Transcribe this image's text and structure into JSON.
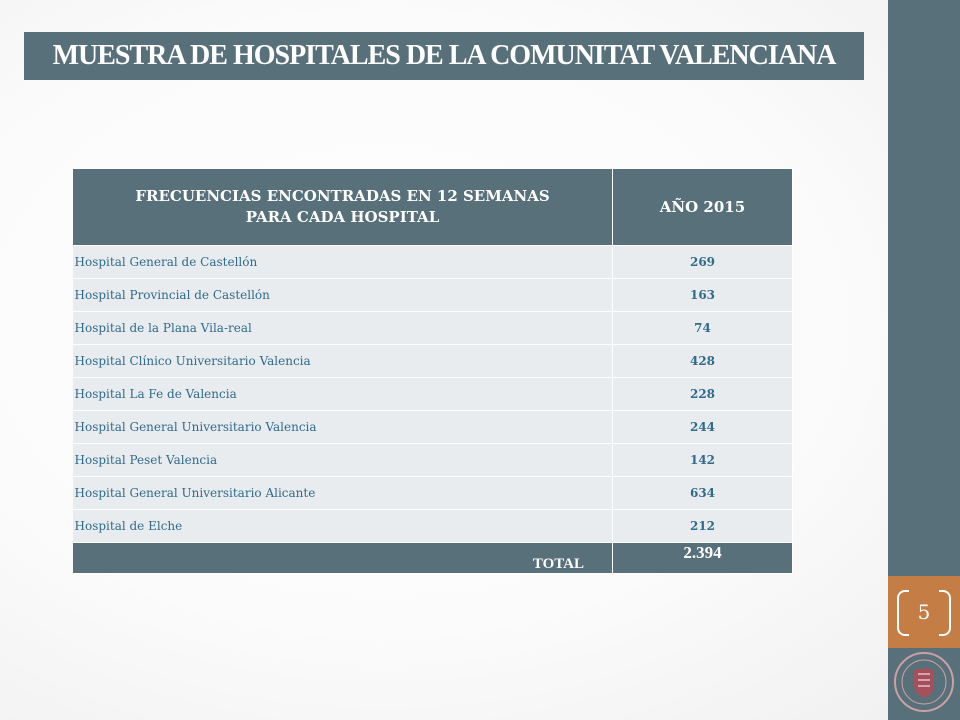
{
  "slide": {
    "title": "MUESTRA DE HOSPITALES DE LA COMUNITAT VALENCIANA",
    "page_number": "5"
  },
  "table": {
    "header_col1_line1": "FRECUENCIAS ENCONTRADAS EN 12 SEMANAS",
    "header_col1_line2": "PARA CADA HOSPITAL",
    "header_col2": "AÑO 2015",
    "rows": [
      {
        "name": "Hospital General de Castellón",
        "value": "269"
      },
      {
        "name": "Hospital Provincial de Castellón",
        "value": "163"
      },
      {
        "name": "Hospital de la Plana Vila-real",
        "value": "74"
      },
      {
        "name": "Hospital Clínico Universitario Valencia",
        "value": "428"
      },
      {
        "name": "Hospital La Fe de Valencia",
        "value": "228"
      },
      {
        "name": "Hospital General Universitario Valencia",
        "value": "244"
      },
      {
        "name": "Hospital Peset Valencia",
        "value": "142"
      },
      {
        "name": "Hospital General Universitario Alicante",
        "value": "634"
      },
      {
        "name": "Hospital de Elche",
        "value": "212"
      }
    ],
    "total_label": "TOTAL",
    "total_value": "2.394"
  },
  "colors": {
    "primary": "#58707a",
    "accent": "#c47e45",
    "row_bg": "#e9ecef",
    "row_text": "#2f6b8a"
  },
  "icons": {
    "logo": "university-seal-icon"
  }
}
